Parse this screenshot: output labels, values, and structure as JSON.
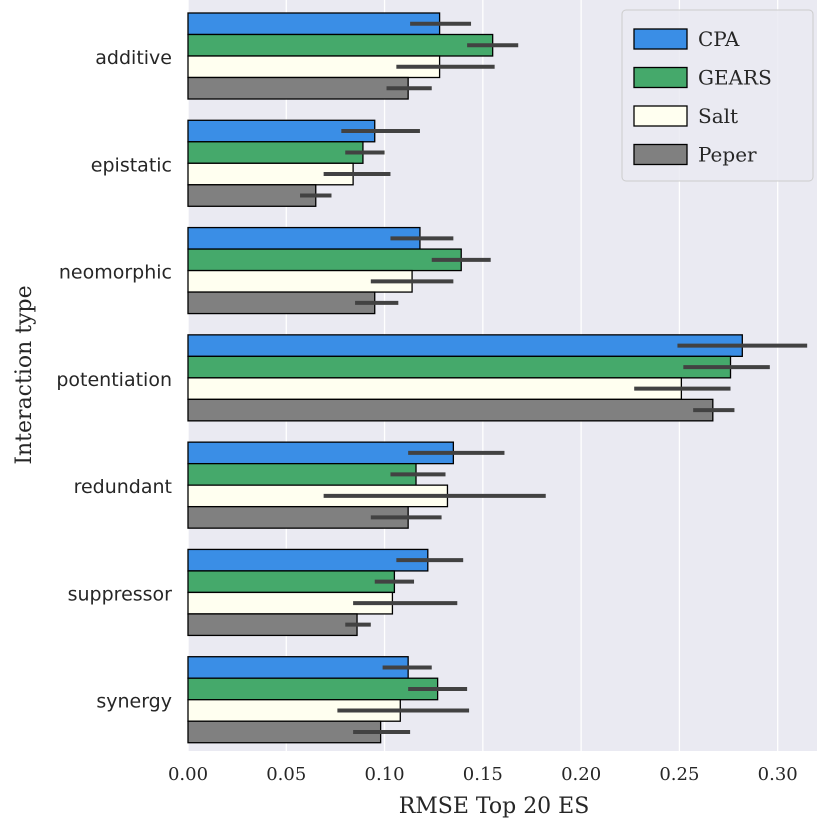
{
  "chart_data": {
    "type": "bar",
    "orientation": "horizontal",
    "title": "",
    "xlabel": "RMSE Top 20 ES",
    "ylabel": "Interaction type",
    "xlim": [
      0,
      0.32
    ],
    "xticks": [
      "0.00",
      "0.05",
      "0.10",
      "0.15",
      "0.20",
      "0.25",
      "0.30"
    ],
    "grid": true,
    "legend_position": "top-right",
    "categories": [
      "additive",
      "epistatic",
      "neomorphic",
      "potentiation",
      "redundant",
      "suppressor",
      "synergy"
    ],
    "series": [
      {
        "name": "CPA",
        "color": "#3a8ee6",
        "values": [
          0.128,
          0.095,
          0.118,
          0.282,
          0.135,
          0.122,
          0.112
        ],
        "error": [
          [
            0.113,
            0.144
          ],
          [
            0.078,
            0.118
          ],
          [
            0.103,
            0.135
          ],
          [
            0.249,
            0.315
          ],
          [
            0.112,
            0.161
          ],
          [
            0.106,
            0.14
          ],
          [
            0.099,
            0.124
          ]
        ]
      },
      {
        "name": "GEARS",
        "color": "#45a96b",
        "values": [
          0.155,
          0.089,
          0.139,
          0.276,
          0.116,
          0.105,
          0.127
        ],
        "error": [
          [
            0.142,
            0.168
          ],
          [
            0.08,
            0.1
          ],
          [
            0.124,
            0.154
          ],
          [
            0.252,
            0.296
          ],
          [
            0.103,
            0.131
          ],
          [
            0.095,
            0.115
          ],
          [
            0.112,
            0.142
          ]
        ]
      },
      {
        "name": "Salt",
        "color": "#fffff0",
        "values": [
          0.128,
          0.084,
          0.114,
          0.251,
          0.132,
          0.104,
          0.108
        ],
        "error": [
          [
            0.106,
            0.156
          ],
          [
            0.069,
            0.103
          ],
          [
            0.093,
            0.135
          ],
          [
            0.227,
            0.276
          ],
          [
            0.069,
            0.182
          ],
          [
            0.084,
            0.137
          ],
          [
            0.076,
            0.143
          ]
        ]
      },
      {
        "name": "Peper",
        "color": "#808080",
        "values": [
          0.112,
          0.065,
          0.095,
          0.267,
          0.112,
          0.086,
          0.098
        ],
        "error": [
          [
            0.101,
            0.124
          ],
          [
            0.057,
            0.073
          ],
          [
            0.085,
            0.107
          ],
          [
            0.257,
            0.278
          ],
          [
            0.093,
            0.129
          ],
          [
            0.08,
            0.093
          ],
          [
            0.084,
            0.113
          ]
        ]
      }
    ]
  }
}
